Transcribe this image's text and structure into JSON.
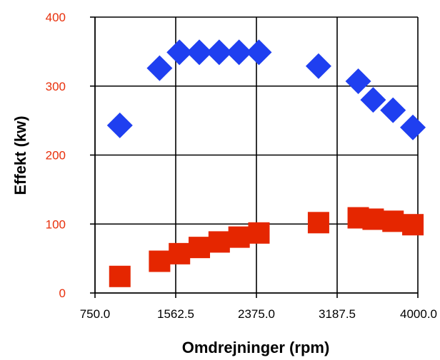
{
  "chart_data": {
    "type": "scatter",
    "title": "",
    "xlabel": "Omdrejninger (rpm)",
    "ylabel": "Effekt (kw)",
    "xlim": [
      750.0,
      4000.0
    ],
    "ylim": [
      0,
      400
    ],
    "x_ticks": [
      750.0,
      1562.5,
      2375.0,
      3187.5,
      4000.0
    ],
    "x_tick_labels": [
      "750.0",
      "1562.5",
      "2375.0",
      "3187.5",
      "4000.0"
    ],
    "y_ticks": [
      0,
      100,
      200,
      300,
      400
    ],
    "y_tick_labels": [
      "0",
      "100",
      "200",
      "300",
      "400"
    ],
    "grid": true,
    "legend": "none",
    "series": [
      {
        "marker": "diamond",
        "color": "#1f3ff0",
        "points": [
          [
            1000,
            243
          ],
          [
            1400,
            326
          ],
          [
            1600,
            349
          ],
          [
            1800,
            349
          ],
          [
            2000,
            349
          ],
          [
            2200,
            349
          ],
          [
            2400,
            349
          ],
          [
            3000,
            329
          ],
          [
            3400,
            307
          ],
          [
            3550,
            280
          ],
          [
            3750,
            265
          ],
          [
            3950,
            240
          ]
        ]
      },
      {
        "marker": "square",
        "color": "#e52600",
        "points": [
          [
            1000,
            24
          ],
          [
            1400,
            46
          ],
          [
            1600,
            57
          ],
          [
            1800,
            66
          ],
          [
            2000,
            74
          ],
          [
            2200,
            81
          ],
          [
            2400,
            87
          ],
          [
            3000,
            102
          ],
          [
            3400,
            109
          ],
          [
            3550,
            107
          ],
          [
            3750,
            104
          ],
          [
            3950,
            99
          ]
        ]
      }
    ]
  }
}
